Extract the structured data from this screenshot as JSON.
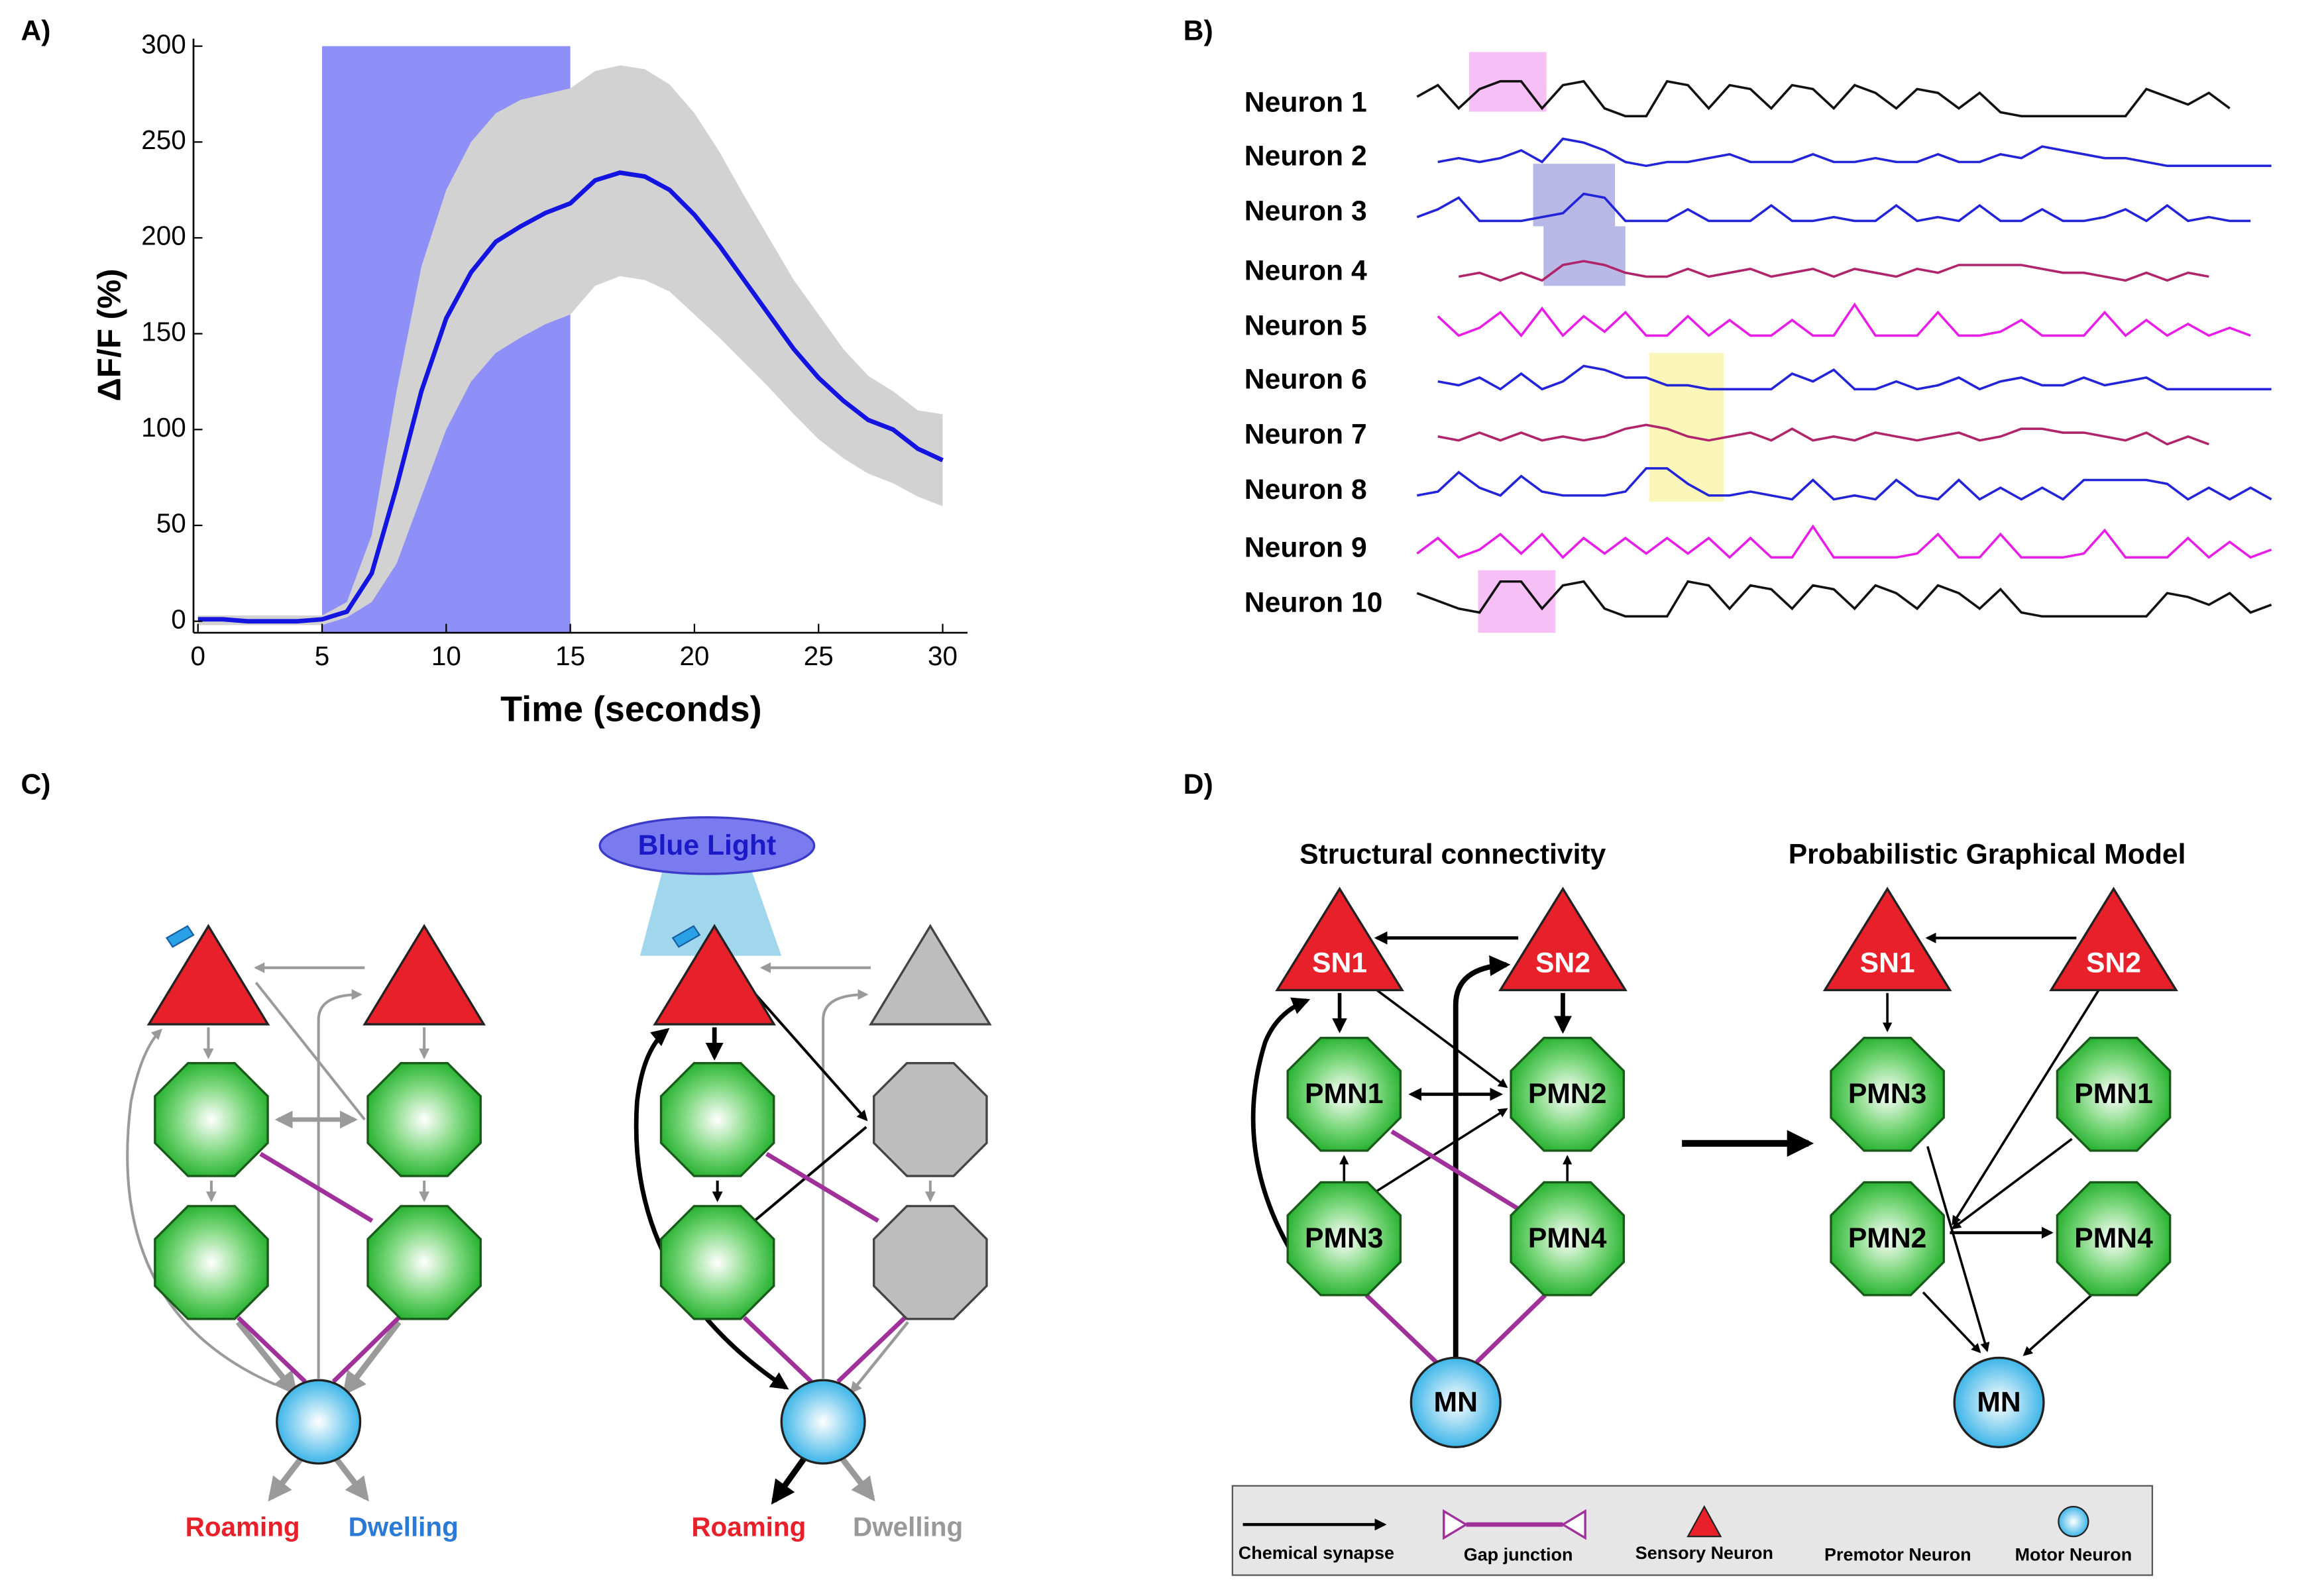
{
  "chart_data": {
    "type": "line",
    "xlabel": "Time (seconds)",
    "ylabel": "ΔF/F (%)",
    "x": [
      0,
      1,
      2,
      3,
      4,
      5,
      6,
      7,
      8,
      9,
      10,
      11,
      12,
      13,
      14,
      15,
      16,
      17,
      18,
      19,
      20,
      21,
      22,
      23,
      24,
      25,
      26,
      27,
      28,
      29,
      30
    ],
    "values": [
      1,
      1,
      0,
      0,
      0,
      1,
      5,
      25,
      70,
      120,
      158,
      182,
      198,
      206,
      213,
      218,
      230,
      234,
      232,
      225,
      212,
      196,
      178,
      160,
      142,
      127,
      115,
      105,
      100,
      90,
      84
    ],
    "band_upper": [
      3,
      3,
      3,
      3,
      3,
      3,
      10,
      45,
      120,
      185,
      225,
      250,
      265,
      272,
      275,
      278,
      287,
      290,
      288,
      280,
      265,
      245,
      222,
      200,
      178,
      160,
      142,
      128,
      120,
      110,
      108
    ],
    "band_lower": [
      -2,
      -2,
      -2,
      -2,
      -2,
      -2,
      2,
      10,
      30,
      65,
      100,
      125,
      140,
      148,
      155,
      160,
      175,
      180,
      178,
      172,
      160,
      148,
      135,
      122,
      108,
      95,
      85,
      77,
      72,
      65,
      60
    ],
    "stimulus": [
      5,
      15
    ],
    "color": "#1414e0",
    "band_color": "#d2d2d2",
    "stimulus_color": "#8f8ff8",
    "xlim": [
      0,
      31
    ],
    "ylim": [
      -6,
      300
    ],
    "xticks": [
      0,
      5,
      10,
      15,
      20,
      25,
      30
    ],
    "yticks": [
      0,
      50,
      100,
      150,
      200,
      250,
      300
    ]
  },
  "panel_labels": [
    "A)",
    "B)",
    "C)",
    "D)"
  ],
  "traces": {
    "labels": [
      "Neuron 1",
      "Neuron 2",
      "Neuron 3",
      "Neuron 4",
      "Neuron 5",
      "Neuron 6",
      "Neuron 7",
      "Neuron 8",
      "Neuron 9",
      "Neuron 10"
    ],
    "colors": [
      "#111111",
      "#2323d8",
      "#2323d8",
      "#b0246a",
      "#e61ee6",
      "#2323d8",
      "#b0246a",
      "#2323d8",
      "#e61ee6",
      "#111111"
    ],
    "values": [
      [
        5,
        8,
        2,
        7,
        9,
        9,
        2,
        8,
        9,
        2,
        0,
        0,
        9,
        8,
        2,
        8,
        7,
        2,
        8,
        7,
        2,
        8,
        6,
        2,
        7,
        6,
        2,
        6,
        1,
        0,
        0,
        0,
        0,
        0,
        0,
        7,
        5,
        3,
        6,
        2
      ],
      [
        null,
        2,
        3,
        2,
        3,
        5,
        2,
        8,
        7,
        5,
        2,
        1,
        2,
        2,
        3,
        4,
        2,
        2,
        2,
        4,
        2,
        2,
        3,
        2,
        2,
        4,
        2,
        2,
        4,
        3,
        6,
        5,
        4,
        3,
        3,
        2,
        1,
        1,
        1,
        1,
        1,
        1
      ],
      [
        2,
        4,
        7,
        1,
        1,
        1,
        2,
        3,
        8,
        7,
        1,
        1,
        1,
        4,
        1,
        1,
        1,
        5,
        1,
        1,
        2,
        1,
        1,
        5,
        1,
        2,
        1,
        5,
        1,
        1,
        4,
        1,
        1,
        2,
        4,
        1,
        5,
        1,
        2,
        1,
        1
      ],
      [
        null,
        null,
        2,
        3,
        1,
        3,
        1,
        5,
        6,
        5,
        3,
        2,
        2,
        4,
        2,
        3,
        4,
        2,
        3,
        4,
        2,
        4,
        3,
        2,
        4,
        3,
        5,
        5,
        5,
        5,
        4,
        3,
        3,
        2,
        1,
        3,
        1,
        3,
        2
      ],
      [
        null,
        6,
        1,
        3,
        7,
        1,
        8,
        1,
        6,
        2,
        7,
        1,
        1,
        6,
        1,
        5,
        1,
        1,
        5,
        1,
        1,
        9,
        1,
        1,
        1,
        7,
        1,
        1,
        2,
        5,
        1,
        1,
        1,
        7,
        1,
        5,
        1,
        4,
        1,
        3,
        1
      ],
      [
        null,
        3,
        2,
        4,
        1,
        5,
        1,
        3,
        7,
        6,
        4,
        4,
        2,
        2,
        1,
        1,
        1,
        1,
        5,
        3,
        6,
        1,
        1,
        3,
        1,
        2,
        4,
        1,
        3,
        4,
        2,
        2,
        4,
        2,
        3,
        4,
        1,
        1,
        1,
        1,
        1,
        1
      ],
      [
        null,
        3,
        2,
        4,
        2,
        4,
        2,
        3,
        2,
        3,
        5,
        6,
        5,
        3,
        2,
        3,
        4,
        2,
        5,
        2,
        3,
        2,
        4,
        3,
        2,
        3,
        4,
        2,
        3,
        5,
        5,
        4,
        4,
        3,
        2,
        4,
        1,
        3,
        1
      ],
      [
        2,
        3,
        8,
        4,
        2,
        7,
        3,
        2,
        2,
        2,
        3,
        9,
        9,
        5,
        2,
        2,
        3,
        2,
        1,
        6,
        1,
        2,
        1,
        6,
        2,
        1,
        6,
        1,
        4,
        1,
        4,
        1,
        6,
        6,
        6,
        6,
        5,
        1,
        4,
        1,
        4,
        1
      ],
      [
        2,
        6,
        1,
        3,
        7,
        2,
        7,
        1,
        6,
        2,
        6,
        2,
        6,
        2,
        6,
        1,
        6,
        1,
        1,
        9,
        1,
        1,
        1,
        1,
        2,
        7,
        1,
        1,
        7,
        1,
        1,
        1,
        2,
        8,
        1,
        1,
        1,
        6,
        1,
        5,
        1,
        3
      ],
      [
        6,
        4,
        2,
        1,
        9,
        9,
        2,
        8,
        9,
        2,
        0,
        0,
        0,
        9,
        8,
        2,
        8,
        7,
        2,
        8,
        7,
        2,
        8,
        6,
        2,
        8,
        6,
        2,
        7,
        1,
        0,
        0,
        0,
        0,
        0,
        0,
        6,
        5,
        3,
        6,
        1,
        3
      ]
    ]
  },
  "diagram_c": {
    "light": "Blue Light",
    "left": {
      "roaming": "Roaming",
      "dwelling": "Dwelling"
    },
    "right": {
      "roaming": "Roaming",
      "dwelling": "Dwelling"
    }
  },
  "diagram_d": {
    "titles": [
      "Structural connectivity",
      "Probabilistic Graphical Model"
    ],
    "left_nodes": [
      "SN1",
      "SN2",
      "PMN1",
      "PMN2",
      "PMN3",
      "PMN4",
      "MN"
    ],
    "right_nodes": [
      "SN1",
      "SN2",
      "PMN3",
      "PMN1",
      "PMN2",
      "PMN4",
      "MN"
    ],
    "legend": [
      "Chemical synapse",
      "Gap junction",
      "Sensory Neuron",
      "Premotor Neuron",
      "Motor Neuron"
    ]
  }
}
